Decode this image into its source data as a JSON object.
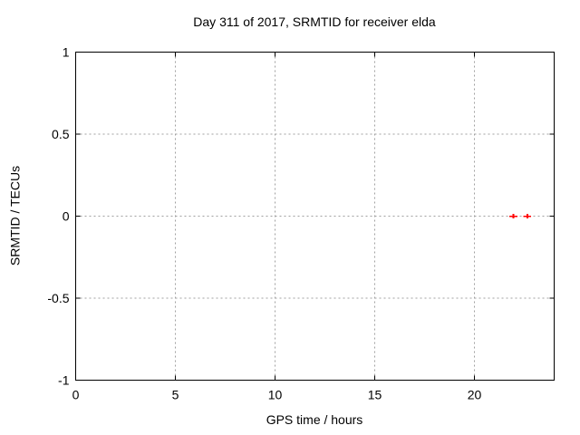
{
  "chart_data": {
    "type": "scatter",
    "title": "Day 311 of 2017, SRMTID for receiver elda",
    "xlabel": "GPS time / hours",
    "ylabel": "SRMTID / TECUs",
    "xlim": [
      0,
      24
    ],
    "ylim": [
      -1,
      1
    ],
    "xticks": [
      {
        "value": 0,
        "label": "0"
      },
      {
        "value": 5,
        "label": "5"
      },
      {
        "value": 10,
        "label": "10"
      },
      {
        "value": 15,
        "label": "15"
      },
      {
        "value": 20,
        "label": "20"
      }
    ],
    "yticks": [
      {
        "value": 1,
        "label": "1"
      },
      {
        "value": 0.5,
        "label": "0.5"
      },
      {
        "value": 0,
        "label": "0"
      },
      {
        "value": -0.5,
        "label": "-0.5"
      },
      {
        "value": -1,
        "label": "-1"
      }
    ],
    "grid": true,
    "legend": "none",
    "series": [
      {
        "name": "SRMTID",
        "marker": "plus-with-xerrorbar",
        "color": "#ff0000",
        "points": [
          {
            "x": 21.95,
            "y": 0.0,
            "xerr": 0.2
          },
          {
            "x": 22.65,
            "y": 0.0,
            "xerr": 0.2
          }
        ]
      }
    ],
    "colors": {
      "background": "#ffffff",
      "axis": "#000000",
      "grid": "#a0a0a0",
      "text": "#000000"
    }
  }
}
